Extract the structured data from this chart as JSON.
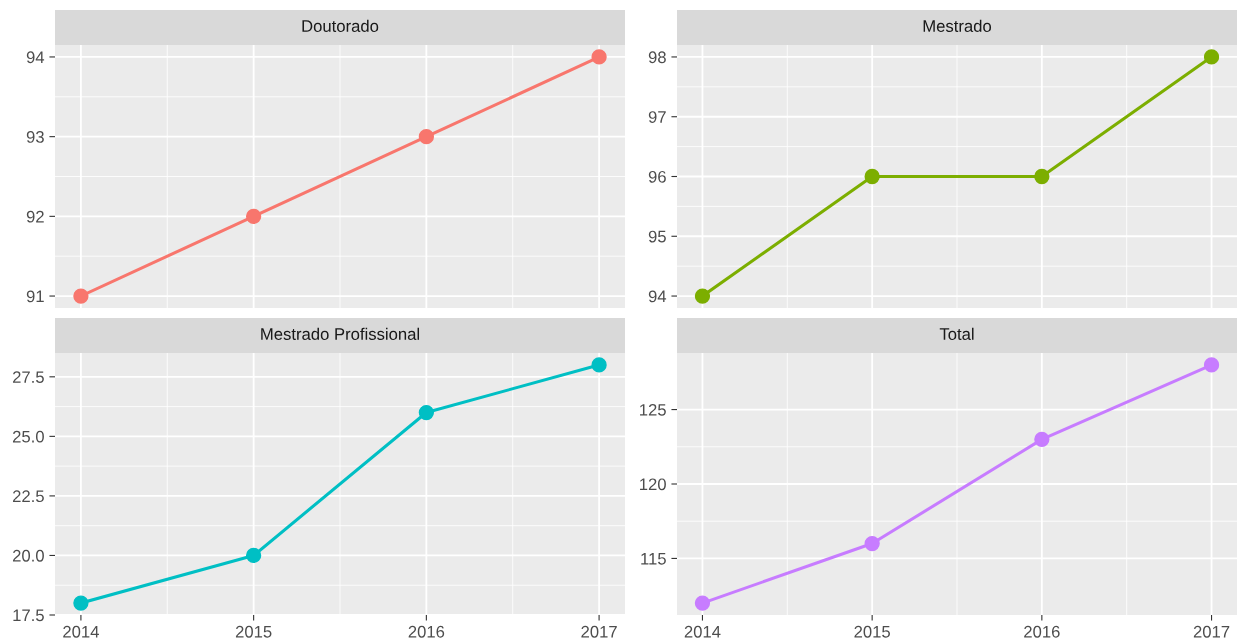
{
  "chart_data": [
    {
      "type": "line",
      "title": "Doutorado",
      "x": [
        2014,
        2015,
        2016,
        2017
      ],
      "series": [
        {
          "color": "#f8766d",
          "values": [
            91,
            92,
            93,
            94
          ]
        }
      ],
      "marker": "circle",
      "xlim": [
        2013.85,
        2017.15
      ],
      "xticks": [
        2014,
        2015,
        2016,
        2017
      ],
      "ylim": [
        90.85,
        94.15
      ],
      "yticks": [
        91,
        92,
        93,
        94
      ],
      "grid": true,
      "tick_labels": "y"
    },
    {
      "type": "line",
      "title": "Mestrado",
      "x": [
        2014,
        2015,
        2016,
        2017
      ],
      "series": [
        {
          "color": "#7cae00",
          "values": [
            94,
            96,
            96,
            98
          ]
        }
      ],
      "marker": "circle",
      "xlim": [
        2013.85,
        2017.15
      ],
      "xticks": [
        2014,
        2015,
        2016,
        2017
      ],
      "ylim": [
        93.8,
        98.2
      ],
      "yticks": [
        94,
        95,
        96,
        97,
        98
      ],
      "grid": true,
      "tick_labels": "y"
    },
    {
      "type": "line",
      "title": "Mestrado Profissional",
      "x": [
        2014,
        2015,
        2016,
        2017
      ],
      "series": [
        {
          "color": "#00bfc4",
          "values": [
            18,
            20,
            26,
            28
          ]
        }
      ],
      "marker": "circle",
      "xlim": [
        2013.85,
        2017.15
      ],
      "xticks": [
        2014,
        2015,
        2016,
        2017
      ],
      "ylim": [
        17.5,
        28.5
      ],
      "yticks": [
        {
          "value": 17.5,
          "label": "17.5"
        },
        {
          "value": 20,
          "label": "20.0"
        },
        {
          "value": 22.5,
          "label": "22.5"
        },
        {
          "value": 25,
          "label": "25.0"
        },
        {
          "value": 27.5,
          "label": "27.5"
        }
      ],
      "grid": true
    },
    {
      "type": "line",
      "title": "Total",
      "x": [
        2014,
        2015,
        2016,
        2017
      ],
      "series": [
        {
          "color": "#c77cff",
          "values": [
            112,
            116,
            123,
            128
          ]
        }
      ],
      "marker": "circle",
      "xlim": [
        2013.85,
        2017.15
      ],
      "xticks": [
        2014,
        2015,
        2016,
        2017
      ],
      "ylim": [
        111.2,
        128.8
      ],
      "yticks": [
        115,
        120,
        125
      ],
      "grid": true
    }
  ]
}
